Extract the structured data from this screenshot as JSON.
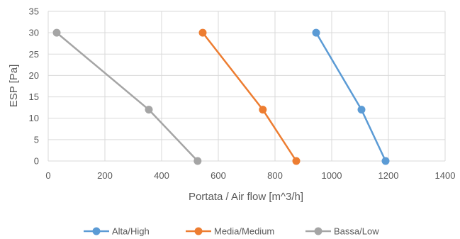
{
  "chart_data": {
    "type": "line",
    "title": "",
    "xlabel": "Portata / Air flow [m^3/h]",
    "ylabel": "ESP [Pa]",
    "xlim": [
      0,
      1400
    ],
    "ylim": [
      0,
      35
    ],
    "x_ticks": [
      0,
      200,
      400,
      600,
      800,
      1000,
      1200,
      1400
    ],
    "y_ticks": [
      0,
      5,
      10,
      15,
      20,
      25,
      30,
      35
    ],
    "grid": true,
    "legend_position": "bottom",
    "series": [
      {
        "name": "Alta/High",
        "color": "#5B9BD5",
        "points": [
          [
            945,
            30
          ],
          [
            1105,
            12
          ],
          [
            1190,
            0
          ]
        ]
      },
      {
        "name": "Media/Medium",
        "color": "#ED7D31",
        "points": [
          [
            545,
            30
          ],
          [
            757,
            12
          ],
          [
            875,
            0
          ]
        ]
      },
      {
        "name": "Bassa/Low",
        "color": "#A5A5A5",
        "points": [
          [
            30,
            30
          ],
          [
            355,
            12
          ],
          [
            527,
            0
          ]
        ]
      }
    ]
  }
}
